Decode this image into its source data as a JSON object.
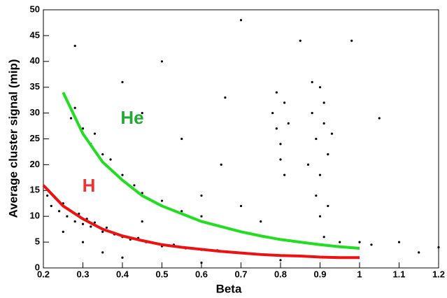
{
  "chart_data": {
    "type": "scatter",
    "xlabel": "Beta",
    "ylabel": "Average cluster signal (mip)",
    "xlim": [
      0.2,
      1.2
    ],
    "ylim": [
      0,
      50
    ],
    "xticks": [
      0.2,
      0.3,
      0.4,
      0.5,
      0.6,
      0.7,
      0.8,
      0.9,
      1,
      1.1,
      1.2
    ],
    "yticks": [
      0,
      5,
      10,
      15,
      20,
      25,
      30,
      35,
      40,
      45,
      50
    ],
    "series": [
      {
        "type": "scatter",
        "color": "#000000",
        "x": [
          0.21,
          0.22,
          0.23,
          0.24,
          0.25,
          0.26,
          0.27,
          0.28,
          0.29,
          0.3,
          0.31,
          0.32,
          0.33,
          0.35,
          0.36,
          0.38,
          0.4,
          0.42,
          0.44,
          0.46,
          0.48,
          0.5,
          0.53,
          0.56,
          0.6,
          0.64,
          0.68,
          0.72,
          0.3,
          0.35,
          0.4,
          0.45,
          0.25,
          0.27,
          0.3,
          0.32,
          0.35,
          0.37,
          0.4,
          0.43,
          0.45,
          0.5,
          0.55,
          0.6,
          0.28,
          0.33,
          0.78,
          0.79,
          0.8,
          0.81,
          0.8,
          0.82,
          0.79,
          0.81,
          0.88,
          0.89,
          0.9,
          0.91,
          0.92,
          0.9,
          0.89,
          0.91,
          0.93,
          0.87,
          0.9,
          0.91,
          0.9,
          0.95,
          1.0,
          1.03,
          0.88,
          0.92,
          0.28,
          0.4,
          0.45,
          0.55,
          0.65,
          0.7,
          0.6,
          0.7,
          0.75,
          0.85,
          0.98,
          1.1,
          1.15,
          1.2,
          0.6,
          0.8,
          0.5,
          0.66,
          1.05
        ],
        "y": [
          14,
          12,
          13.5,
          11,
          12.5,
          10,
          11,
          9,
          10.5,
          8.5,
          9.5,
          8,
          8.8,
          7,
          7.8,
          6.5,
          6,
          5.5,
          5.8,
          5,
          4.8,
          4.2,
          4.5,
          3.8,
          3.5,
          3.4,
          3,
          2.8,
          5,
          3,
          2,
          9,
          7,
          29,
          27,
          24,
          22,
          21,
          18,
          16,
          14.5,
          13,
          11,
          10,
          31,
          26,
          30,
          27,
          24,
          32,
          21,
          28,
          34,
          18,
          30,
          25,
          35,
          28,
          22,
          18,
          14,
          32,
          26,
          20,
          10,
          6,
          4.5,
          5,
          5,
          4.5,
          36,
          12,
          43,
          36,
          30,
          25,
          20,
          48,
          14,
          12,
          9,
          44,
          44,
          5,
          3,
          4,
          1,
          1.5,
          40,
          33,
          29
        ]
      },
      {
        "name": "He",
        "type": "line",
        "color": "#22dd22",
        "x": [
          0.25,
          0.3,
          0.35,
          0.4,
          0.45,
          0.5,
          0.55,
          0.6,
          0.65,
          0.7,
          0.75,
          0.8,
          0.85,
          0.9,
          0.95,
          1.0
        ],
        "y": [
          34,
          26,
          20.5,
          17,
          14,
          12,
          10.5,
          9,
          8,
          7,
          6.2,
          5.5,
          5,
          4.5,
          4.1,
          3.8
        ]
      },
      {
        "name": "H",
        "type": "line",
        "color": "#ee1111",
        "x": [
          0.2,
          0.25,
          0.3,
          0.35,
          0.4,
          0.45,
          0.5,
          0.55,
          0.6,
          0.65,
          0.7,
          0.75,
          0.8,
          0.85,
          0.9,
          0.95,
          1.0
        ],
        "y": [
          16,
          12,
          9.5,
          7.5,
          6.2,
          5.3,
          4.5,
          4,
          3.6,
          3.2,
          2.9,
          2.6,
          2.4,
          2.3,
          2.1,
          2,
          2
        ]
      }
    ]
  }
}
